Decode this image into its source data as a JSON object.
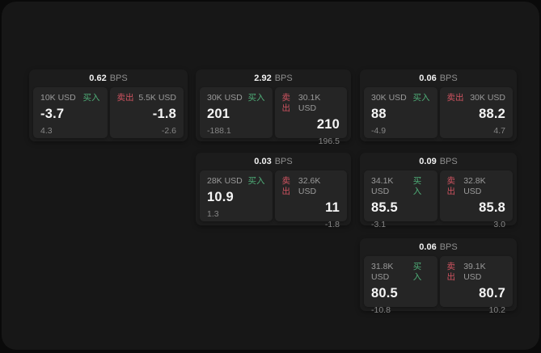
{
  "labels": {
    "bps": "BPS",
    "buy": "买入",
    "sell": "卖出"
  },
  "colors": {
    "outer_bg": "#0a0a0a",
    "panel_bg": "#171717",
    "card_bg": "#1c1c1c",
    "tile_bg": "#252525",
    "buy_green": "#4fae78",
    "sell_red": "#cf5360",
    "value_white": "#f5f5f5",
    "label_gray": "#9a9a9a"
  },
  "cards": [
    {
      "bps": "0.62",
      "buy": {
        "size": "10K USD",
        "price": "-3.7",
        "delta": "4.3"
      },
      "sell": {
        "size": "5.5K USD",
        "price": "-1.8",
        "delta": "-2.6"
      }
    },
    {
      "bps": "2.92",
      "buy": {
        "size": "30K USD",
        "price": "201",
        "delta": "-188.1"
      },
      "sell": {
        "size": "30.1K USD",
        "price": "210",
        "delta": "196.5"
      }
    },
    {
      "bps": "0.06",
      "buy": {
        "size": "30K USD",
        "price": "88",
        "delta": "-4.9"
      },
      "sell": {
        "size": "30K USD",
        "price": "88.2",
        "delta": "4.7"
      }
    },
    {
      "bps": "0.03",
      "buy": {
        "size": "28K USD",
        "price": "10.9",
        "delta": "1.3"
      },
      "sell": {
        "size": "32.6K USD",
        "price": "11",
        "delta": "-1.8"
      }
    },
    {
      "bps": "0.09",
      "buy": {
        "size": "34.1K USD",
        "price": "85.5",
        "delta": "-3.1"
      },
      "sell": {
        "size": "32.8K USD",
        "price": "85.8",
        "delta": "3.0"
      }
    },
    {
      "bps": "0.06",
      "buy": {
        "size": "31.8K USD",
        "price": "80.5",
        "delta": "-10.8"
      },
      "sell": {
        "size": "39.1K USD",
        "price": "80.7",
        "delta": "10.2"
      }
    }
  ]
}
